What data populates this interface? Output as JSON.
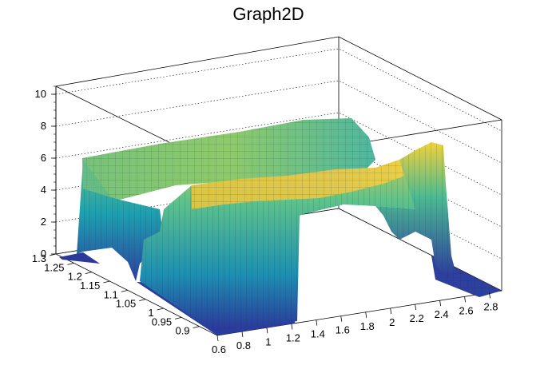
{
  "chart_data": {
    "type": "surface3d",
    "title": "Graph2D",
    "xlabel": "",
    "ylabel": "",
    "zlabel": "",
    "x_ticks": [
      "0.6",
      "0.8",
      "1",
      "1.2",
      "1.4",
      "1.6",
      "1.8",
      "2",
      "2.2",
      "2.4",
      "2.6",
      "2.8"
    ],
    "y_ticks": [
      "0.9",
      "0.95",
      "1",
      "1.05",
      "1.1",
      "1.15",
      "1.2",
      "1.25",
      "1.3"
    ],
    "z_ticks": [
      "0",
      "2",
      "4",
      "6",
      "8",
      "10"
    ],
    "xlim": [
      0.6,
      2.9
    ],
    "ylim": [
      0.85,
      1.3
    ],
    "zlim": [
      0,
      10.5
    ],
    "grid": true,
    "colormap": "viridis-like",
    "colors": {
      "low": "#2c3a9e",
      "mid": "#1fa3b6",
      "high": "#f5d23a"
    },
    "description_values": {
      "plateau_height_back": 6.2,
      "ridge_peak_right": 7.2,
      "front_ridge_height": 4.6
    }
  }
}
